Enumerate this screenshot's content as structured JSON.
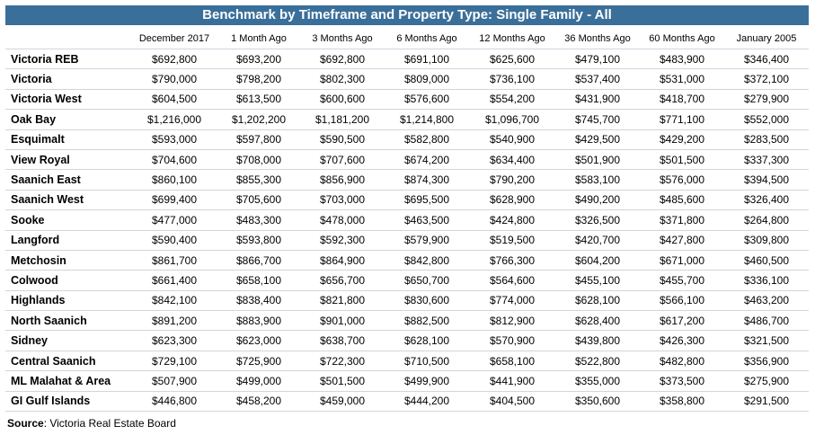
{
  "title": "Benchmark by Timeframe and Property Type: Single Family - All",
  "columns": [
    "",
    "December 2017",
    "1 Month Ago",
    "3 Months Ago",
    "6 Months Ago",
    "12 Months Ago",
    "36 Months Ago",
    "60 Months Ago",
    "January 2005"
  ],
  "rows": [
    [
      "Victoria REB",
      "$692,800",
      "$693,200",
      "$692,800",
      "$691,100",
      "$625,600",
      "$479,100",
      "$483,900",
      "$346,400"
    ],
    [
      "Victoria",
      "$790,000",
      "$798,200",
      "$802,300",
      "$809,000",
      "$736,100",
      "$537,400",
      "$531,000",
      "$372,100"
    ],
    [
      "Victoria West",
      "$604,500",
      "$613,500",
      "$600,600",
      "$576,600",
      "$554,200",
      "$431,900",
      "$418,700",
      "$279,900"
    ],
    [
      "Oak Bay",
      "$1,216,000",
      "$1,202,200",
      "$1,181,200",
      "$1,214,800",
      "$1,096,700",
      "$745,700",
      "$771,100",
      "$552,000"
    ],
    [
      "Esquimalt",
      "$593,000",
      "$597,800",
      "$590,500",
      "$582,800",
      "$540,900",
      "$429,500",
      "$429,200",
      "$283,500"
    ],
    [
      "View Royal",
      "$704,600",
      "$708,000",
      "$707,600",
      "$674,200",
      "$634,400",
      "$501,900",
      "$501,500",
      "$337,300"
    ],
    [
      "Saanich East",
      "$860,100",
      "$855,300",
      "$856,900",
      "$874,300",
      "$790,200",
      "$583,100",
      "$576,000",
      "$394,500"
    ],
    [
      "Saanich West",
      "$699,400",
      "$705,600",
      "$703,000",
      "$695,500",
      "$628,900",
      "$490,200",
      "$485,600",
      "$326,400"
    ],
    [
      "Sooke",
      "$477,000",
      "$483,300",
      "$478,000",
      "$463,500",
      "$424,800",
      "$326,500",
      "$371,800",
      "$264,800"
    ],
    [
      "Langford",
      "$590,400",
      "$593,800",
      "$592,300",
      "$579,900",
      "$519,500",
      "$420,700",
      "$427,800",
      "$309,800"
    ],
    [
      "Metchosin",
      "$861,700",
      "$866,700",
      "$864,900",
      "$842,800",
      "$766,300",
      "$604,200",
      "$671,000",
      "$460,500"
    ],
    [
      "Colwood",
      "$661,400",
      "$658,100",
      "$656,700",
      "$650,700",
      "$564,600",
      "$455,100",
      "$455,700",
      "$336,100"
    ],
    [
      "Highlands",
      "$842,100",
      "$838,400",
      "$821,800",
      "$830,600",
      "$774,000",
      "$628,100",
      "$566,100",
      "$463,200"
    ],
    [
      "North Saanich",
      "$891,200",
      "$883,900",
      "$901,000",
      "$882,500",
      "$812,900",
      "$628,400",
      "$617,200",
      "$486,700"
    ],
    [
      "Sidney",
      "$623,300",
      "$623,000",
      "$638,700",
      "$628,100",
      "$570,900",
      "$439,800",
      "$426,300",
      "$321,500"
    ],
    [
      "Central Saanich",
      "$729,100",
      "$725,900",
      "$722,300",
      "$710,500",
      "$658,100",
      "$522,800",
      "$482,800",
      "$356,900"
    ],
    [
      "ML Malahat & Area",
      "$507,900",
      "$499,000",
      "$501,500",
      "$499,900",
      "$441,900",
      "$355,000",
      "$373,500",
      "$275,900"
    ],
    [
      "GI Gulf Islands",
      "$446,800",
      "$458,200",
      "$459,000",
      "$444,200",
      "$404,500",
      "$350,600",
      "$358,800",
      "$291,500"
    ]
  ],
  "source_label": "Source",
  "source_text": ": Victoria Real Estate Board"
}
